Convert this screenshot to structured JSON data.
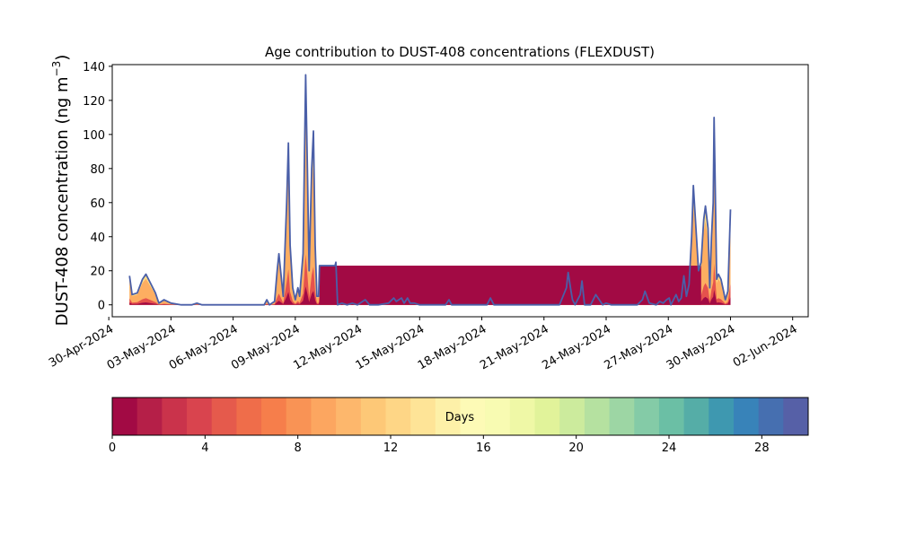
{
  "chart_data": {
    "type": "area",
    "title": "Age contribution to DUST-408 concentrations (FLEXDUST)",
    "ylabel_main": "DUST-408 concentration (ng m",
    "ylabel_sup": "−3",
    "ylabel_close": ")",
    "xlabel": "",
    "ylim": [
      -7,
      141
    ],
    "y_ticks": [
      0,
      20,
      40,
      60,
      80,
      100,
      120,
      140
    ],
    "x_range": [
      "2024-04-30T04:00",
      "2024-06-02T18:00"
    ],
    "x_ticks": [
      "30-Apr-2024",
      "03-May-2024",
      "06-May-2024",
      "09-May-2024",
      "12-May-2024",
      "15-May-2024",
      "18-May-2024",
      "21-May-2024",
      "24-May-2024",
      "27-May-2024",
      "30-May-2024",
      "02-Jun-2024"
    ],
    "x_tick_dates": [
      "2024-04-30",
      "2024-05-03",
      "2024-05-06",
      "2024-05-09",
      "2024-05-12",
      "2024-05-15",
      "2024-05-18",
      "2024-05-21",
      "2024-05-24",
      "2024-05-27",
      "2024-05-30",
      "2024-06-02"
    ],
    "total_series": {
      "name": "",
      "color": "#4a5fa8",
      "points": [
        [
          "2024-05-01T00:00",
          17
        ],
        [
          "2024-05-01T03:00",
          6
        ],
        [
          "2024-05-01T09:00",
          7
        ],
        [
          "2024-05-01T15:00",
          15
        ],
        [
          "2024-05-01T19:00",
          18
        ],
        [
          "2024-05-02T00:00",
          13
        ],
        [
          "2024-05-02T06:00",
          7
        ],
        [
          "2024-05-02T10:00",
          1
        ],
        [
          "2024-05-02T16:00",
          3
        ],
        [
          "2024-05-03T00:00",
          1
        ],
        [
          "2024-05-03T12:00",
          0
        ],
        [
          "2024-05-04T00:00",
          0
        ],
        [
          "2024-05-04T06:00",
          1
        ],
        [
          "2024-05-04T12:00",
          0
        ],
        [
          "2024-05-05T00:00",
          0
        ],
        [
          "2024-05-06T00:00",
          0
        ],
        [
          "2024-05-07T00:00",
          0
        ],
        [
          "2024-05-07T12:00",
          0
        ],
        [
          "2024-05-07T15:00",
          3
        ],
        [
          "2024-05-07T18:00",
          0
        ],
        [
          "2024-05-08T00:00",
          2
        ],
        [
          "2024-05-08T03:00",
          20
        ],
        [
          "2024-05-08T05:00",
          30
        ],
        [
          "2024-05-08T08:00",
          15
        ],
        [
          "2024-05-08T10:00",
          5
        ],
        [
          "2024-05-08T14:00",
          60
        ],
        [
          "2024-05-08T16:00",
          95
        ],
        [
          "2024-05-08T18:00",
          35
        ],
        [
          "2024-05-08T21:00",
          10
        ],
        [
          "2024-05-09T00:00",
          3
        ],
        [
          "2024-05-09T03:00",
          10
        ],
        [
          "2024-05-09T05:00",
          5
        ],
        [
          "2024-05-09T09:00",
          30
        ],
        [
          "2024-05-09T11:00",
          100
        ],
        [
          "2024-05-09T12:00",
          135
        ],
        [
          "2024-05-09T14:00",
          80
        ],
        [
          "2024-05-09T16:00",
          20
        ],
        [
          "2024-05-09T19:00",
          80
        ],
        [
          "2024-05-09T21:00",
          102
        ],
        [
          "2024-05-09T23:00",
          35
        ],
        [
          "2024-05-10T01:00",
          5
        ],
        [
          "2024-05-10T03:00",
          5
        ],
        [
          "2024-05-10T04:00",
          23
        ],
        [
          "2024-05-10T22:00",
          23
        ],
        [
          "2024-05-10T23:00",
          25
        ],
        [
          "2024-05-11T01:00",
          0
        ],
        [
          "2024-05-11T06:00",
          1
        ],
        [
          "2024-05-11T12:00",
          0
        ],
        [
          "2024-05-11T18:00",
          1
        ],
        [
          "2024-05-12T00:00",
          0
        ],
        [
          "2024-05-12T06:00",
          2
        ],
        [
          "2024-05-12T09:00",
          3
        ],
        [
          "2024-05-12T14:00",
          0
        ],
        [
          "2024-05-13T00:00",
          0
        ],
        [
          "2024-05-13T12:00",
          1
        ],
        [
          "2024-05-13T18:00",
          4
        ],
        [
          "2024-05-13T21:00",
          2
        ],
        [
          "2024-05-14T03:00",
          4
        ],
        [
          "2024-05-14T06:00",
          1
        ],
        [
          "2024-05-14T10:00",
          4
        ],
        [
          "2024-05-14T13:00",
          1
        ],
        [
          "2024-05-14T18:00",
          1
        ],
        [
          "2024-05-15T00:00",
          0
        ],
        [
          "2024-05-16T00:00",
          0
        ],
        [
          "2024-05-16T06:00",
          0
        ],
        [
          "2024-05-16T10:00",
          3
        ],
        [
          "2024-05-16T13:00",
          0
        ],
        [
          "2024-05-17T00:00",
          0
        ],
        [
          "2024-05-18T00:00",
          0
        ],
        [
          "2024-05-18T06:00",
          0
        ],
        [
          "2024-05-18T10:00",
          4
        ],
        [
          "2024-05-18T14:00",
          0
        ],
        [
          "2024-05-19T00:00",
          0
        ],
        [
          "2024-05-20T00:00",
          0
        ],
        [
          "2024-05-21T00:00",
          0
        ],
        [
          "2024-05-21T18:00",
          0
        ],
        [
          "2024-05-22T02:00",
          10
        ],
        [
          "2024-05-22T04:00",
          19
        ],
        [
          "2024-05-22T07:00",
          9
        ],
        [
          "2024-05-22T09:00",
          3
        ],
        [
          "2024-05-22T12:00",
          0
        ],
        [
          "2024-05-22T18:00",
          6
        ],
        [
          "2024-05-22T20:00",
          14
        ],
        [
          "2024-05-22T23:00",
          0
        ],
        [
          "2024-05-23T06:00",
          0
        ],
        [
          "2024-05-23T12:00",
          6
        ],
        [
          "2024-05-23T16:00",
          3
        ],
        [
          "2024-05-23T20:00",
          0
        ],
        [
          "2024-05-24T00:00",
          1
        ],
        [
          "2024-05-24T06:00",
          0
        ],
        [
          "2024-05-25T00:00",
          0
        ],
        [
          "2024-05-25T12:00",
          0
        ],
        [
          "2024-05-25T18:00",
          3
        ],
        [
          "2024-05-25T21:00",
          8
        ],
        [
          "2024-05-26T02:00",
          1
        ],
        [
          "2024-05-26T10:00",
          0
        ],
        [
          "2024-05-26T14:00",
          2
        ],
        [
          "2024-05-26T18:00",
          1
        ],
        [
          "2024-05-26T22:00",
          3
        ],
        [
          "2024-05-27T01:00",
          4
        ],
        [
          "2024-05-27T03:00",
          0
        ],
        [
          "2024-05-27T06:00",
          3
        ],
        [
          "2024-05-27T09:00",
          6
        ],
        [
          "2024-05-27T12:00",
          2
        ],
        [
          "2024-05-27T15:00",
          4
        ],
        [
          "2024-05-27T18:00",
          17
        ],
        [
          "2024-05-27T21:00",
          5
        ],
        [
          "2024-05-28T00:00",
          12
        ],
        [
          "2024-05-28T03:00",
          40
        ],
        [
          "2024-05-28T05:00",
          70
        ],
        [
          "2024-05-28T08:00",
          45
        ],
        [
          "2024-05-28T11:00",
          20
        ],
        [
          "2024-05-28T14:00",
          25
        ],
        [
          "2024-05-28T17:00",
          50
        ],
        [
          "2024-05-28T19:00",
          58
        ],
        [
          "2024-05-28T22:00",
          45
        ],
        [
          "2024-05-29T00:00",
          10
        ],
        [
          "2024-05-29T02:00",
          40
        ],
        [
          "2024-05-29T04:00",
          60
        ],
        [
          "2024-05-29T05:00",
          110
        ],
        [
          "2024-05-29T06:00",
          80
        ],
        [
          "2024-05-29T08:00",
          15
        ],
        [
          "2024-05-29T10:00",
          18
        ],
        [
          "2024-05-29T13:00",
          15
        ],
        [
          "2024-05-29T16:00",
          8
        ],
        [
          "2024-05-29T18:00",
          3
        ],
        [
          "2024-05-29T21:00",
          8
        ],
        [
          "2024-05-30T00:00",
          56
        ]
      ]
    },
    "colorbar": {
      "label": "Days",
      "ticks": [
        0,
        4,
        8,
        12,
        16,
        20,
        24,
        28
      ],
      "range": [
        0,
        30
      ],
      "colors": [
        "#a20a44",
        "#b51f48",
        "#ca334b",
        "#d9444e",
        "#e55a4c",
        "#ef6d4a",
        "#f67e4b",
        "#f99355",
        "#fca660",
        "#fdb76c",
        "#fdc877",
        "#fed686",
        "#fee497",
        "#fdf0a8",
        "#fdfab6",
        "#f8fbb2",
        "#eff8a6",
        "#e1f39a",
        "#cceb9d",
        "#b5e1a0",
        "#9dd6a4",
        "#84cba7",
        "#6bbfa5",
        "#55ada7",
        "#3e98b0",
        "#3883b9",
        "#466fb0",
        "#5660a7"
      ]
    },
    "age_palette": {
      "fresh": "#a20a44",
      "young": "#e5524d",
      "mid": "#fdae61",
      "old": "#fee08b"
    }
  }
}
